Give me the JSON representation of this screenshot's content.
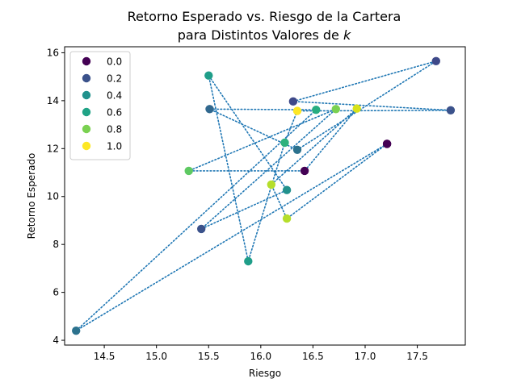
{
  "chart_data": {
    "type": "scatter",
    "title_line1": "Retorno Esperado vs. Riesgo de la Cartera",
    "title_line2_prefix": "para Distintos Valores de ",
    "title_line2_var": "k",
    "xlabel": "Riesgo",
    "ylabel": "Retorno Esperado",
    "xlim": [
      14.12,
      17.96
    ],
    "ylim": [
      3.8,
      16.25
    ],
    "xticks": [
      "14.5",
      "15.0",
      "15.5",
      "16.0",
      "16.5",
      "17.0",
      "17.5"
    ],
    "xtick_values": [
      14.5,
      15.0,
      15.5,
      16.0,
      16.5,
      17.0,
      17.5
    ],
    "yticks": [
      "4",
      "6",
      "8",
      "10",
      "12",
      "14",
      "16"
    ],
    "ytick_values": [
      4,
      6,
      8,
      10,
      12,
      14,
      16
    ],
    "grid": false,
    "legend_position": "top-left",
    "legend": [
      {
        "label": "0.0",
        "color": "#440154"
      },
      {
        "label": "0.2",
        "color": "#3b528b"
      },
      {
        "label": "0.4",
        "color": "#21918c"
      },
      {
        "label": "0.6",
        "color": "#20a386"
      },
      {
        "label": "0.8",
        "color": "#7ad151"
      },
      {
        "label": "1.0",
        "color": "#fde725"
      }
    ],
    "line_color": "#1f77b4",
    "line_style": "dotted",
    "points": [
      {
        "x": 17.21,
        "y": 12.2,
        "k": 0.0,
        "color": "#440154"
      },
      {
        "x": 14.23,
        "y": 4.4,
        "k": 0.4,
        "color": "#2c728e"
      },
      {
        "x": 16.53,
        "y": 13.62,
        "k": 0.6,
        "color": "#27ad81"
      },
      {
        "x": 15.51,
        "y": 13.65,
        "k": 0.4,
        "color": "#31688e"
      },
      {
        "x": 16.35,
        "y": 11.95,
        "k": 0.4,
        "color": "#2c728e"
      },
      {
        "x": 17.68,
        "y": 15.65,
        "k": 0.2,
        "color": "#3e4989"
      },
      {
        "x": 16.31,
        "y": 13.97,
        "k": 0.2,
        "color": "#3e4989"
      },
      {
        "x": 17.82,
        "y": 13.6,
        "k": 0.2,
        "color": "#3b528b"
      },
      {
        "x": 16.35,
        "y": 13.57,
        "k": 1.0,
        "color": "#fde725"
      },
      {
        "x": 16.23,
        "y": 12.25,
        "k": 0.6,
        "color": "#2db27d"
      },
      {
        "x": 15.88,
        "y": 7.3,
        "k": 0.6,
        "color": "#1f9e89"
      },
      {
        "x": 15.5,
        "y": 15.05,
        "k": 0.6,
        "color": "#1f9e89"
      },
      {
        "x": 16.25,
        "y": 10.27,
        "k": 0.4,
        "color": "#21918c"
      },
      {
        "x": 15.43,
        "y": 8.65,
        "k": 0.2,
        "color": "#3b528b"
      },
      {
        "x": 16.72,
        "y": 13.65,
        "k": 0.8,
        "color": "#7ad151"
      },
      {
        "x": 15.31,
        "y": 11.07,
        "k": 0.8,
        "color": "#5ec962"
      },
      {
        "x": 16.42,
        "y": 11.07,
        "k": 0.0,
        "color": "#440154"
      },
      {
        "x": 16.92,
        "y": 13.67,
        "k": 1.0,
        "color": "#d8e219"
      },
      {
        "x": 16.1,
        "y": 10.5,
        "k": 0.8,
        "color": "#b5de2b"
      },
      {
        "x": 16.25,
        "y": 9.08,
        "k": 0.8,
        "color": "#b5de2b"
      },
      {
        "x": 17.21,
        "y": 12.2,
        "k": 0.0,
        "color": "#440154"
      }
    ]
  }
}
